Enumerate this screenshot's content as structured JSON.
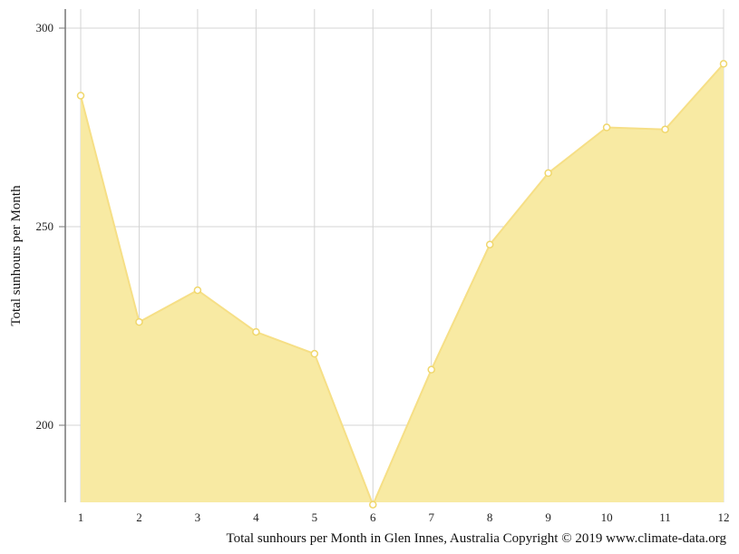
{
  "chart_data": {
    "type": "area",
    "x": [
      1,
      2,
      3,
      4,
      5,
      6,
      7,
      8,
      9,
      10,
      11,
      12
    ],
    "series": [
      {
        "values": [
          283,
          226,
          234,
          223.5,
          218,
          180,
          214,
          245.5,
          263.5,
          275,
          274.5,
          291
        ]
      }
    ],
    "xlabel": "",
    "ylabel": "Total sunhours per Month",
    "ylim": [
      180,
      305
    ],
    "yticks": [
      200,
      250,
      300
    ],
    "grid": true,
    "colors": {
      "fill": "#f8eaa3",
      "line": "#f6df86",
      "marker_stroke": "#f0d76c",
      "marker_fill": "#ffffff",
      "grid": "#d4d4d4",
      "axis": "#777777"
    }
  },
  "caption": "Total sunhours per Month in Glen Innes, Australia Copyright © 2019 www.climate-data.org"
}
